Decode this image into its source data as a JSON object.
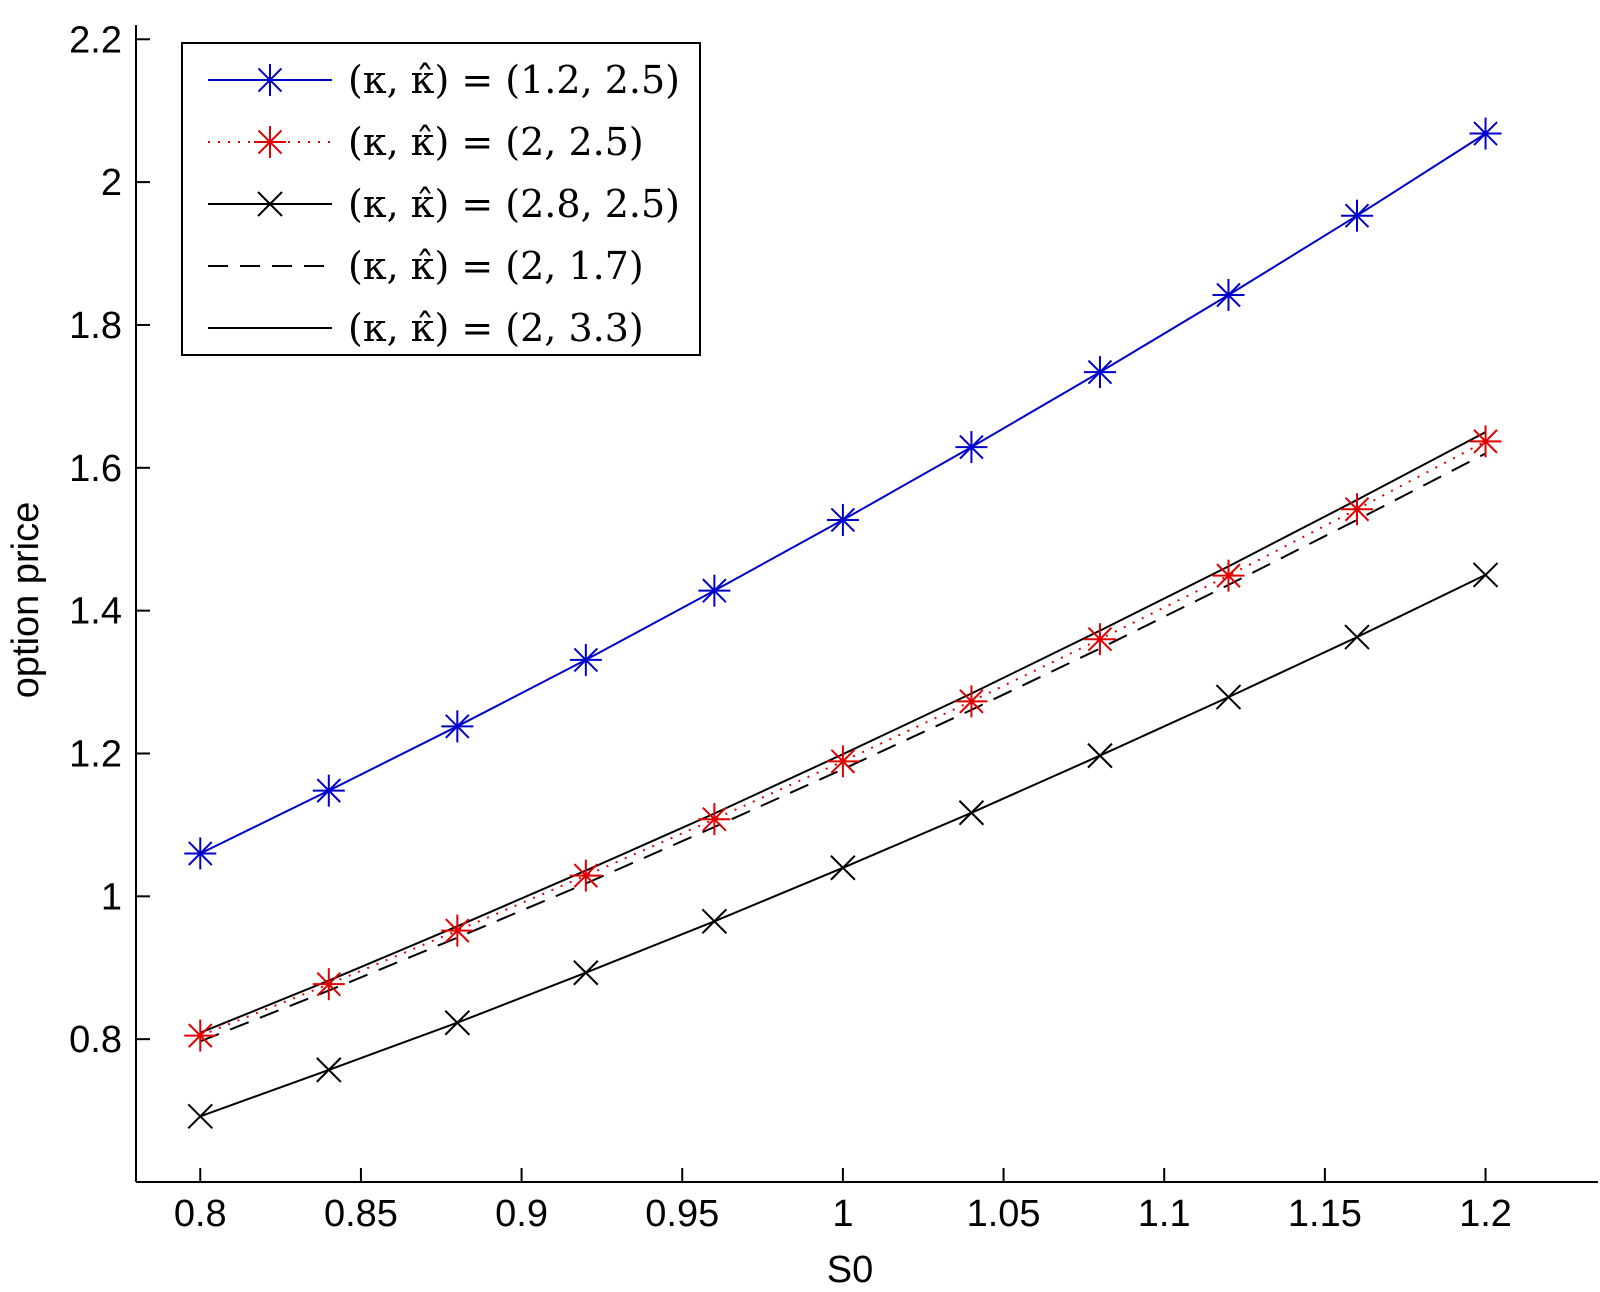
{
  "chart_data": {
    "type": "line",
    "xlabel": "S0",
    "ylabel": "option price",
    "xlim": [
      0.78,
      1.235
    ],
    "ylim": [
      0.6,
      2.22
    ],
    "x_ticks": [
      0.8,
      0.85,
      0.9,
      0.95,
      1,
      1.05,
      1.1,
      1.15,
      1.2
    ],
    "x_tick_labels": [
      "0.8",
      "0.85",
      "0.9",
      "0.95",
      "1",
      "1.05",
      "1.1",
      "1.15",
      "1.2"
    ],
    "y_ticks": [
      0.8,
      1,
      1.2,
      1.4,
      1.6,
      1.8,
      2,
      2.2
    ],
    "y_tick_labels": [
      "0.8",
      "1",
      "1.2",
      "1.4",
      "1.6",
      "1.8",
      "2",
      "2.2"
    ],
    "grid": false,
    "legend_position": "top-left",
    "x": [
      0.8,
      0.84,
      0.88,
      0.92,
      0.96,
      1.0,
      1.04,
      1.08,
      1.12,
      1.16,
      1.2
    ],
    "series": [
      {
        "name": "(κ, κ̂) = (1.2, 2.5)",
        "color": "#0000cc",
        "line": "solid",
        "marker": "asterisk",
        "values": [
          1.06,
          1.148,
          1.238,
          1.331,
          1.428,
          1.527,
          1.629,
          1.734,
          1.842,
          1.953,
          2.068
        ]
      },
      {
        "name": "(κ, κ̂) = (2, 2.5)",
        "color": "#e00000",
        "line": "dotted",
        "marker": "asterisk",
        "values": [
          0.805,
          0.877,
          0.952,
          1.029,
          1.108,
          1.189,
          1.273,
          1.36,
          1.449,
          1.542,
          1.637
        ]
      },
      {
        "name": "(κ, κ̂) = (2.8, 2.5)",
        "color": "#000000",
        "line": "solid",
        "marker": "cross",
        "values": [
          0.692,
          0.757,
          0.823,
          0.893,
          0.965,
          1.04,
          1.117,
          1.197,
          1.279,
          1.363,
          1.45
        ]
      },
      {
        "name": "(κ, κ̂) = (2, 1.7)",
        "color": "#000000",
        "line": "dashed",
        "marker": "none",
        "values": [
          0.797,
          0.868,
          0.942,
          1.018,
          1.097,
          1.178,
          1.261,
          1.347,
          1.436,
          1.527,
          1.62
        ]
      },
      {
        "name": "(κ, κ̂) = (2, 3.3)",
        "color": "#000000",
        "line": "solid",
        "marker": "none",
        "values": [
          0.809,
          0.882,
          0.958,
          1.036,
          1.116,
          1.199,
          1.284,
          1.372,
          1.462,
          1.555,
          1.65
        ]
      }
    ]
  }
}
